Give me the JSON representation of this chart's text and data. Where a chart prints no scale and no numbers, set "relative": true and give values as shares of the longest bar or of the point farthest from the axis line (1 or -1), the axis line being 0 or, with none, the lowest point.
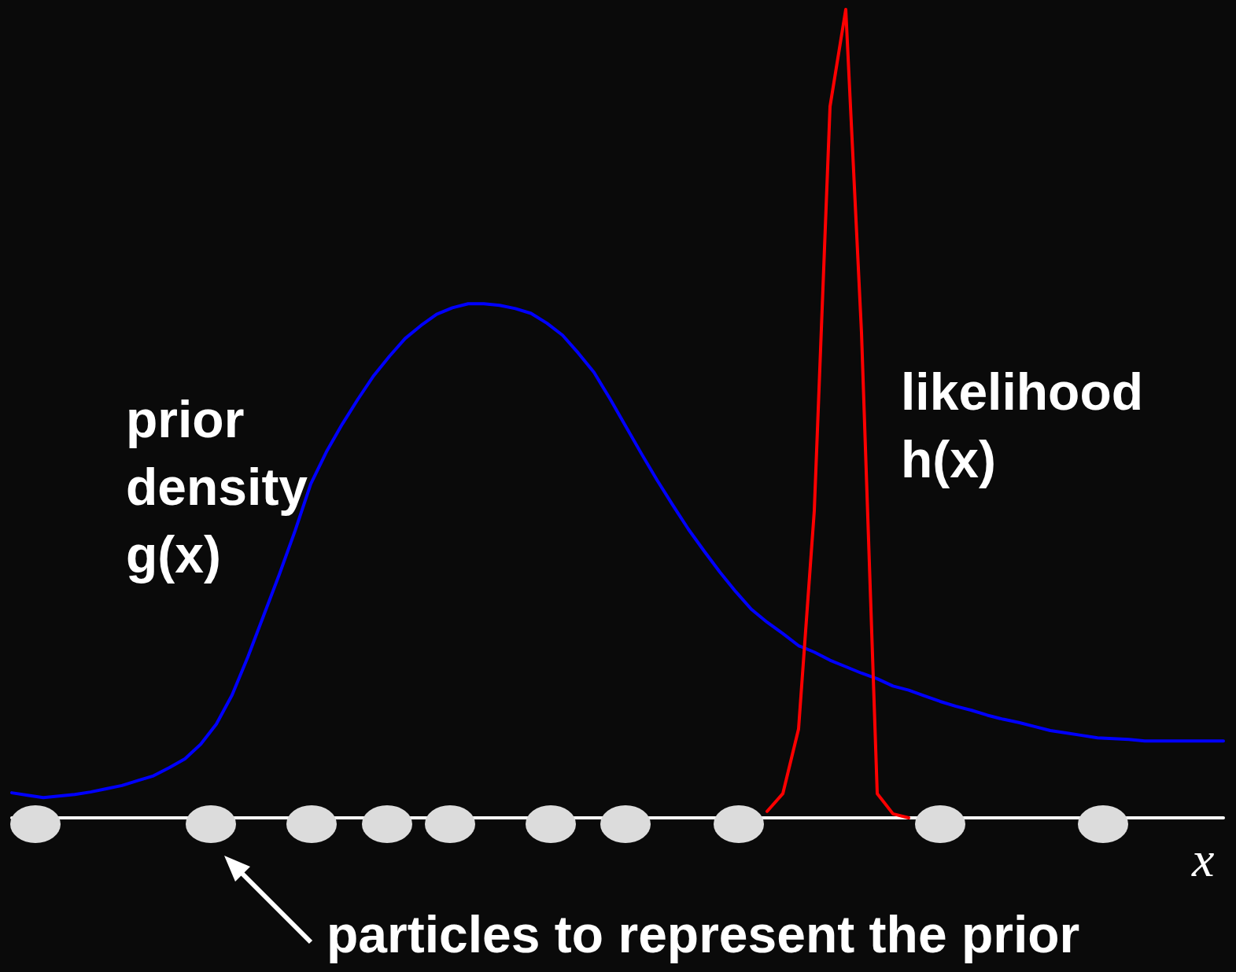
{
  "chart_data": {
    "type": "line",
    "relative": true,
    "xlabel": "x",
    "grid": false,
    "legend": false,
    "marker": "none",
    "line_style": "solid",
    "annotations": [
      "particles to represent the prior"
    ],
    "categories": [
      null,
      null,
      null,
      null,
      null,
      null,
      null,
      null,
      null,
      null,
      null,
      null,
      null,
      null,
      null,
      null,
      null,
      null,
      null,
      null,
      null,
      null,
      null,
      null,
      null,
      null,
      null,
      null,
      null,
      null,
      null,
      null,
      null,
      null,
      null,
      null,
      null,
      null,
      null,
      null,
      null,
      null,
      null,
      null,
      null,
      null,
      null,
      null,
      null,
      null,
      null,
      null,
      null,
      null,
      null,
      null,
      null,
      null,
      null,
      null,
      null,
      null,
      null,
      null,
      null,
      null,
      null,
      null,
      null,
      null,
      null,
      null,
      null,
      null,
      null,
      null,
      null,
      null
    ],
    "series": [
      {
        "name": "prior density g(x)",
        "color": "#0000ff",
        "values": [
          0.031,
          0.028,
          0.025,
          0.027,
          0.029,
          0.032,
          0.036,
          0.04,
          0.046,
          0.052,
          0.062,
          0.073,
          0.091,
          0.116,
          0.152,
          0.199,
          0.25,
          0.301,
          0.355,
          0.413,
          0.453,
          0.487,
          0.518,
          0.547,
          0.571,
          0.593,
          0.609,
          0.623,
          0.631,
          0.636,
          0.636,
          0.634,
          0.63,
          0.624,
          0.612,
          0.597,
          0.575,
          0.551,
          0.519,
          0.485,
          0.451,
          0.418,
          0.387,
          0.357,
          0.33,
          0.304,
          0.28,
          0.258,
          0.242,
          0.228,
          0.213,
          0.205,
          0.195,
          0.187,
          0.179,
          0.172,
          0.163,
          0.158,
          0.151,
          0.144,
          0.138,
          0.133,
          0.127,
          0.122,
          0.118,
          0.113,
          0.108,
          0.105,
          0.102,
          0.099,
          0.098,
          0.097,
          0.095,
          0.095,
          0.095,
          0.095,
          0.095,
          0.095
        ]
      },
      {
        "name": "likelihood h(x)",
        "color": "#ff0000",
        "values": [
          null,
          null,
          null,
          null,
          null,
          null,
          null,
          null,
          null,
          null,
          null,
          null,
          null,
          null,
          null,
          null,
          null,
          null,
          null,
          null,
          null,
          null,
          null,
          null,
          null,
          null,
          null,
          null,
          null,
          null,
          null,
          null,
          null,
          null,
          null,
          null,
          null,
          null,
          null,
          null,
          null,
          null,
          null,
          null,
          null,
          null,
          null,
          null,
          0.008,
          0.03,
          0.11,
          0.38,
          0.88,
          1,
          0.6,
          0.03,
          0.005,
          0,
          null,
          null,
          null,
          null,
          null,
          null,
          null,
          null,
          null,
          null,
          null,
          null,
          null,
          null,
          null,
          null,
          null,
          null,
          null,
          null
        ]
      }
    ]
  }
}
